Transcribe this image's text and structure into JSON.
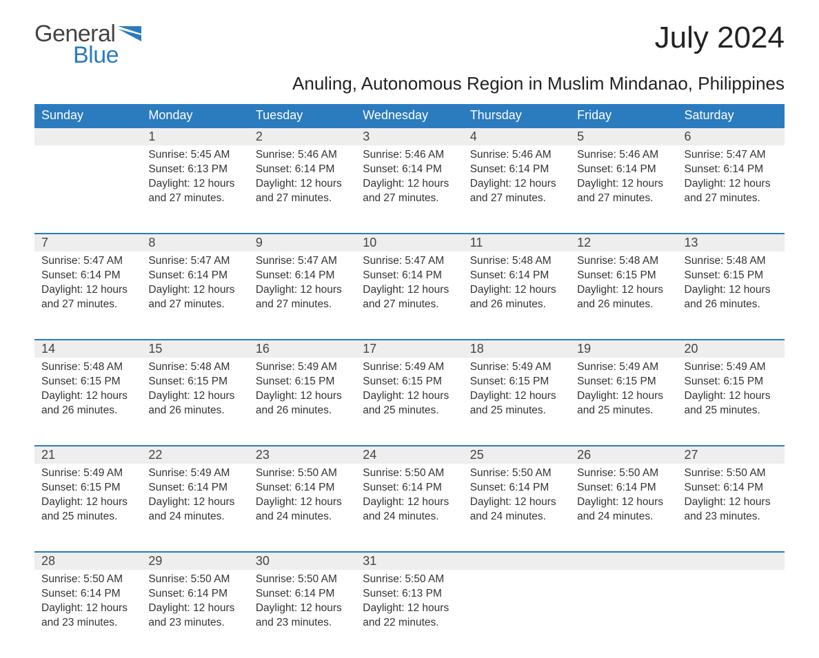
{
  "logo": {
    "text1": "General",
    "text2": "Blue",
    "color_general": "#444444",
    "color_blue": "#2b7bbf"
  },
  "title": "July 2024",
  "subtitle": "Anuling, Autonomous Region in Muslim Mindanao, Philippines",
  "header_bg": "#2b7bbf",
  "header_fg": "#ffffff",
  "daynum_bg": "#eeeeee",
  "border_color": "#2b7bbf",
  "text_color": "#333333",
  "weekdays": [
    "Sunday",
    "Monday",
    "Tuesday",
    "Wednesday",
    "Thursday",
    "Friday",
    "Saturday"
  ],
  "weeks": [
    {
      "nums": [
        "",
        "1",
        "2",
        "3",
        "4",
        "5",
        "6"
      ],
      "cells": [
        {
          "empty": true
        },
        {
          "sunrise": "Sunrise: 5:45 AM",
          "sunset": "Sunset: 6:13 PM",
          "day1": "Daylight: 12 hours",
          "day2": "and 27 minutes."
        },
        {
          "sunrise": "Sunrise: 5:46 AM",
          "sunset": "Sunset: 6:14 PM",
          "day1": "Daylight: 12 hours",
          "day2": "and 27 minutes."
        },
        {
          "sunrise": "Sunrise: 5:46 AM",
          "sunset": "Sunset: 6:14 PM",
          "day1": "Daylight: 12 hours",
          "day2": "and 27 minutes."
        },
        {
          "sunrise": "Sunrise: 5:46 AM",
          "sunset": "Sunset: 6:14 PM",
          "day1": "Daylight: 12 hours",
          "day2": "and 27 minutes."
        },
        {
          "sunrise": "Sunrise: 5:46 AM",
          "sunset": "Sunset: 6:14 PM",
          "day1": "Daylight: 12 hours",
          "day2": "and 27 minutes."
        },
        {
          "sunrise": "Sunrise: 5:47 AM",
          "sunset": "Sunset: 6:14 PM",
          "day1": "Daylight: 12 hours",
          "day2": "and 27 minutes."
        }
      ]
    },
    {
      "nums": [
        "7",
        "8",
        "9",
        "10",
        "11",
        "12",
        "13"
      ],
      "cells": [
        {
          "sunrise": "Sunrise: 5:47 AM",
          "sunset": "Sunset: 6:14 PM",
          "day1": "Daylight: 12 hours",
          "day2": "and 27 minutes."
        },
        {
          "sunrise": "Sunrise: 5:47 AM",
          "sunset": "Sunset: 6:14 PM",
          "day1": "Daylight: 12 hours",
          "day2": "and 27 minutes."
        },
        {
          "sunrise": "Sunrise: 5:47 AM",
          "sunset": "Sunset: 6:14 PM",
          "day1": "Daylight: 12 hours",
          "day2": "and 27 minutes."
        },
        {
          "sunrise": "Sunrise: 5:47 AM",
          "sunset": "Sunset: 6:14 PM",
          "day1": "Daylight: 12 hours",
          "day2": "and 27 minutes."
        },
        {
          "sunrise": "Sunrise: 5:48 AM",
          "sunset": "Sunset: 6:14 PM",
          "day1": "Daylight: 12 hours",
          "day2": "and 26 minutes."
        },
        {
          "sunrise": "Sunrise: 5:48 AM",
          "sunset": "Sunset: 6:15 PM",
          "day1": "Daylight: 12 hours",
          "day2": "and 26 minutes."
        },
        {
          "sunrise": "Sunrise: 5:48 AM",
          "sunset": "Sunset: 6:15 PM",
          "day1": "Daylight: 12 hours",
          "day2": "and 26 minutes."
        }
      ]
    },
    {
      "nums": [
        "14",
        "15",
        "16",
        "17",
        "18",
        "19",
        "20"
      ],
      "cells": [
        {
          "sunrise": "Sunrise: 5:48 AM",
          "sunset": "Sunset: 6:15 PM",
          "day1": "Daylight: 12 hours",
          "day2": "and 26 minutes."
        },
        {
          "sunrise": "Sunrise: 5:48 AM",
          "sunset": "Sunset: 6:15 PM",
          "day1": "Daylight: 12 hours",
          "day2": "and 26 minutes."
        },
        {
          "sunrise": "Sunrise: 5:49 AM",
          "sunset": "Sunset: 6:15 PM",
          "day1": "Daylight: 12 hours",
          "day2": "and 26 minutes."
        },
        {
          "sunrise": "Sunrise: 5:49 AM",
          "sunset": "Sunset: 6:15 PM",
          "day1": "Daylight: 12 hours",
          "day2": "and 25 minutes."
        },
        {
          "sunrise": "Sunrise: 5:49 AM",
          "sunset": "Sunset: 6:15 PM",
          "day1": "Daylight: 12 hours",
          "day2": "and 25 minutes."
        },
        {
          "sunrise": "Sunrise: 5:49 AM",
          "sunset": "Sunset: 6:15 PM",
          "day1": "Daylight: 12 hours",
          "day2": "and 25 minutes."
        },
        {
          "sunrise": "Sunrise: 5:49 AM",
          "sunset": "Sunset: 6:15 PM",
          "day1": "Daylight: 12 hours",
          "day2": "and 25 minutes."
        }
      ]
    },
    {
      "nums": [
        "21",
        "22",
        "23",
        "24",
        "25",
        "26",
        "27"
      ],
      "cells": [
        {
          "sunrise": "Sunrise: 5:49 AM",
          "sunset": "Sunset: 6:15 PM",
          "day1": "Daylight: 12 hours",
          "day2": "and 25 minutes."
        },
        {
          "sunrise": "Sunrise: 5:49 AM",
          "sunset": "Sunset: 6:14 PM",
          "day1": "Daylight: 12 hours",
          "day2": "and 24 minutes."
        },
        {
          "sunrise": "Sunrise: 5:50 AM",
          "sunset": "Sunset: 6:14 PM",
          "day1": "Daylight: 12 hours",
          "day2": "and 24 minutes."
        },
        {
          "sunrise": "Sunrise: 5:50 AM",
          "sunset": "Sunset: 6:14 PM",
          "day1": "Daylight: 12 hours",
          "day2": "and 24 minutes."
        },
        {
          "sunrise": "Sunrise: 5:50 AM",
          "sunset": "Sunset: 6:14 PM",
          "day1": "Daylight: 12 hours",
          "day2": "and 24 minutes."
        },
        {
          "sunrise": "Sunrise: 5:50 AM",
          "sunset": "Sunset: 6:14 PM",
          "day1": "Daylight: 12 hours",
          "day2": "and 24 minutes."
        },
        {
          "sunrise": "Sunrise: 5:50 AM",
          "sunset": "Sunset: 6:14 PM",
          "day1": "Daylight: 12 hours",
          "day2": "and 23 minutes."
        }
      ]
    },
    {
      "nums": [
        "28",
        "29",
        "30",
        "31",
        "",
        "",
        ""
      ],
      "cells": [
        {
          "sunrise": "Sunrise: 5:50 AM",
          "sunset": "Sunset: 6:14 PM",
          "day1": "Daylight: 12 hours",
          "day2": "and 23 minutes."
        },
        {
          "sunrise": "Sunrise: 5:50 AM",
          "sunset": "Sunset: 6:14 PM",
          "day1": "Daylight: 12 hours",
          "day2": "and 23 minutes."
        },
        {
          "sunrise": "Sunrise: 5:50 AM",
          "sunset": "Sunset: 6:14 PM",
          "day1": "Daylight: 12 hours",
          "day2": "and 23 minutes."
        },
        {
          "sunrise": "Sunrise: 5:50 AM",
          "sunset": "Sunset: 6:13 PM",
          "day1": "Daylight: 12 hours",
          "day2": "and 22 minutes."
        },
        {
          "empty": true
        },
        {
          "empty": true
        },
        {
          "empty": true
        }
      ]
    }
  ]
}
